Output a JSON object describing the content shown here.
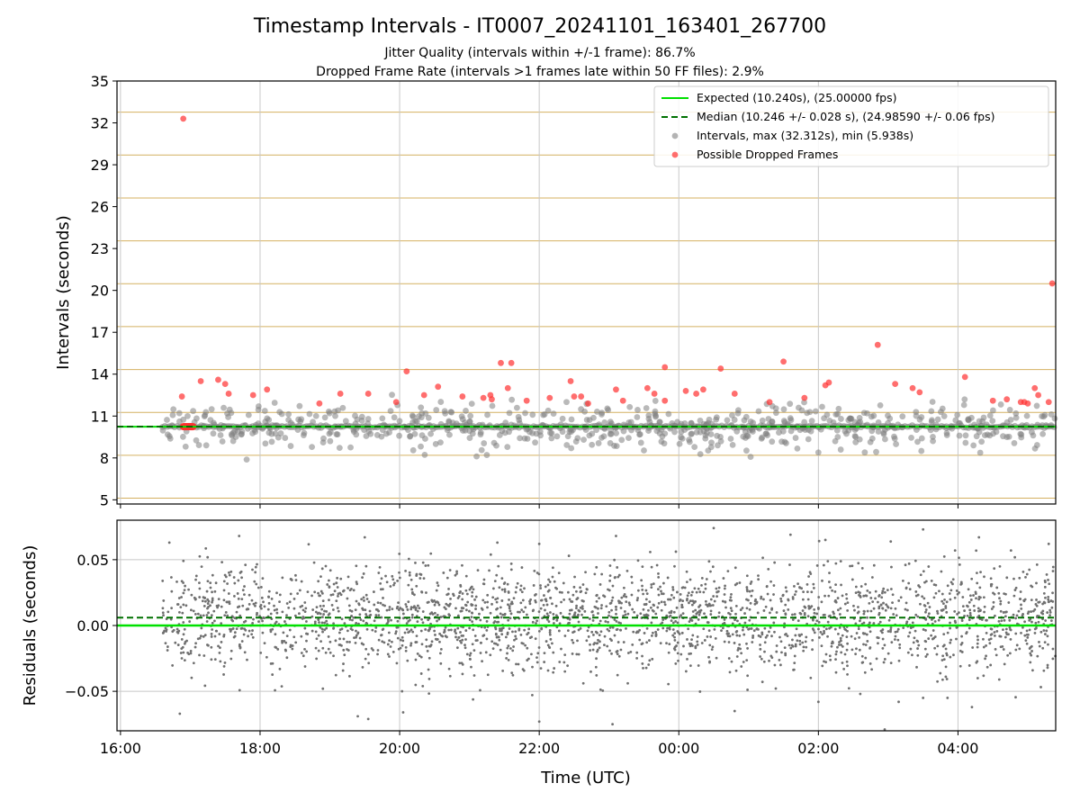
{
  "figure": {
    "title": "Timestamp Intervals - IT0007_20241101_163401_267700",
    "subtitle_1": "Jitter Quality (intervals within +/-1 frame): 86.7%",
    "subtitle_2": "Dropped Frame Rate (intervals >1 frames late within 50 FF files): 2.9%",
    "xlabel": "Time (UTC)"
  },
  "colors": {
    "expected_line": "#00e000",
    "median_line": "#007000",
    "interval_points": "#808080",
    "dropped_points": "#ff3030",
    "frame_gridlines": "#d4b060",
    "residual_points": "#707070"
  },
  "chart_data": [
    {
      "type": "scatter",
      "panel": "intervals",
      "ylabel": "Intervals (seconds)",
      "xlim": [
        15.95,
        29.4
      ],
      "ylim": [
        4.7,
        35
      ],
      "x_unit": "hours UTC (values over 24 are past 00:00)",
      "y_ticks": [
        5,
        8,
        11,
        14,
        17,
        20,
        23,
        26,
        29,
        32,
        35
      ],
      "y_tick_labels": [
        "5",
        "8",
        "11",
        "14",
        "17",
        "20",
        "23",
        "26",
        "29",
        "32",
        "35"
      ],
      "frame_gridlines_y": [
        5.12,
        8.19,
        11.26,
        14.33,
        17.41,
        20.48,
        23.55,
        26.62,
        29.7,
        32.77
      ],
      "legend_position": "top-right",
      "legend": {
        "expected": "Expected (10.240s), (25.00000 fps)",
        "median": "Median (10.246 +/- 0.028 s), (24.98590 +/- 0.06 fps)",
        "intervals": "Intervals, max (32.312s), min (5.938s)",
        "dropped": "Possible Dropped Frames"
      },
      "expected_value": 10.24,
      "median_value": 10.246,
      "series_dropped": [
        [
          16.9,
          32.3
        ],
        [
          16.88,
          12.4
        ],
        [
          17.15,
          13.5
        ],
        [
          17.4,
          13.6
        ],
        [
          17.5,
          13.3
        ],
        [
          17.55,
          12.6
        ],
        [
          17.9,
          12.5
        ],
        [
          18.1,
          12.9
        ],
        [
          18.85,
          11.9
        ],
        [
          19.15,
          12.6
        ],
        [
          19.55,
          12.6
        ],
        [
          19.95,
          12.0
        ],
        [
          20.1,
          14.2
        ],
        [
          20.35,
          12.5
        ],
        [
          20.55,
          13.1
        ],
        [
          20.9,
          12.4
        ],
        [
          21.2,
          12.3
        ],
        [
          21.3,
          12.5
        ],
        [
          21.32,
          12.2
        ],
        [
          21.45,
          14.8
        ],
        [
          21.55,
          13.0
        ],
        [
          21.6,
          14.8
        ],
        [
          21.82,
          12.1
        ],
        [
          22.15,
          12.3
        ],
        [
          22.45,
          13.5
        ],
        [
          22.5,
          12.4
        ],
        [
          22.6,
          12.4
        ],
        [
          22.7,
          11.9
        ],
        [
          23.1,
          12.9
        ],
        [
          23.2,
          12.1
        ],
        [
          23.55,
          13.0
        ],
        [
          23.65,
          12.6
        ],
        [
          23.8,
          12.1
        ],
        [
          23.8,
          14.5
        ],
        [
          24.1,
          12.8
        ],
        [
          24.25,
          12.6
        ],
        [
          24.35,
          12.9
        ],
        [
          24.6,
          14.4
        ],
        [
          24.8,
          12.6
        ],
        [
          25.3,
          12.0
        ],
        [
          25.5,
          14.9
        ],
        [
          25.8,
          12.3
        ],
        [
          26.1,
          13.2
        ],
        [
          26.15,
          13.4
        ],
        [
          26.85,
          16.1
        ],
        [
          27.1,
          13.3
        ],
        [
          27.35,
          13.0
        ],
        [
          27.45,
          12.7
        ],
        [
          28.1,
          13.8
        ],
        [
          28.5,
          12.1
        ],
        [
          28.7,
          12.2
        ],
        [
          28.9,
          12.0
        ],
        [
          28.95,
          12.0
        ],
        [
          29.0,
          11.9
        ],
        [
          29.1,
          13.0
        ],
        [
          29.15,
          12.5
        ],
        [
          29.3,
          12.0
        ],
        [
          29.35,
          20.5
        ]
      ]
    },
    {
      "type": "scatter",
      "panel": "residuals",
      "ylabel": "Residuals (seconds)",
      "xlim": [
        15.95,
        29.4
      ],
      "ylim": [
        -0.08,
        0.08
      ],
      "y_ticks": [
        -0.05,
        0,
        0.05
      ],
      "y_tick_labels": [
        "−0.05",
        "0.00",
        "0.05"
      ],
      "x_ticks": [
        16,
        18,
        20,
        22,
        24,
        26,
        28
      ],
      "x_tick_labels": [
        "16:00",
        "18:00",
        "20:00",
        "22:00",
        "00:00",
        "02:00",
        "04:00"
      ],
      "expected_residual": 0.0,
      "median_residual": 0.006,
      "residual_spread": 0.02,
      "outliers": [
        [
          16.85,
          -0.067
        ],
        [
          18.9,
          -0.048
        ],
        [
          19.4,
          -0.069
        ],
        [
          19.55,
          -0.071
        ],
        [
          20.05,
          -0.066
        ],
        [
          22.0,
          -0.073
        ],
        [
          23.05,
          -0.075
        ],
        [
          24.8,
          -0.065
        ],
        [
          26.0,
          -0.058
        ],
        [
          26.6,
          -0.052
        ],
        [
          26.95,
          -0.079
        ],
        [
          27.15,
          -0.058
        ],
        [
          27.5,
          -0.055
        ],
        [
          27.85,
          -0.055
        ],
        [
          28.2,
          -0.062
        ],
        [
          16.7,
          0.063
        ],
        [
          17.7,
          0.068
        ],
        [
          19.5,
          0.067
        ],
        [
          21.4,
          0.063
        ],
        [
          22.0,
          0.062
        ],
        [
          23.1,
          0.068
        ],
        [
          24.5,
          0.074
        ],
        [
          25.6,
          0.069
        ],
        [
          26.1,
          0.065
        ],
        [
          27.5,
          0.073
        ],
        [
          28.3,
          0.067
        ],
        [
          29.3,
          0.062
        ]
      ]
    }
  ]
}
